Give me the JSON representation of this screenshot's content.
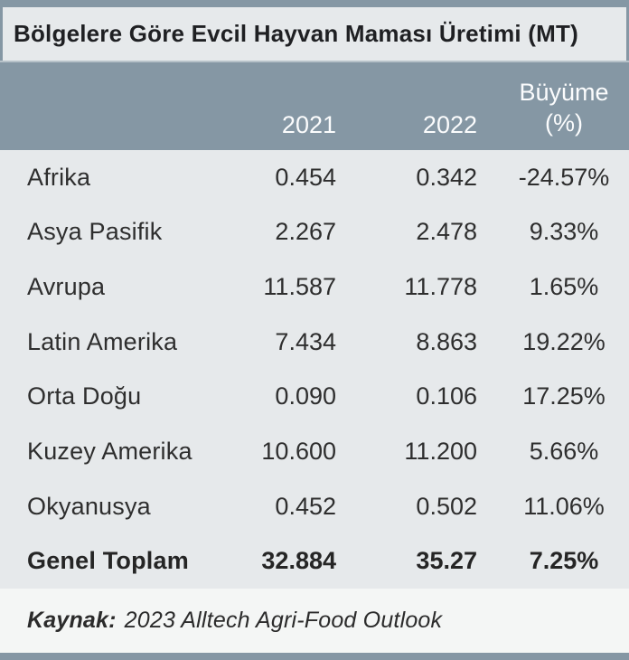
{
  "title": "Bölgelere Göre Evcil Hayvan Maması Üretimi (MT)",
  "columns": {
    "region": "",
    "year1": "2021",
    "year2": "2022",
    "growth_line1": "Büyüme",
    "growth_line2": "(%)"
  },
  "rows": [
    {
      "region": "Afrika",
      "y2021": "0.454",
      "y2022": "0.342",
      "growth": "-24.57%"
    },
    {
      "region": "Asya Pasifik",
      "y2021": "2.267",
      "y2022": "2.478",
      "growth": "9.33%"
    },
    {
      "region": "Avrupa",
      "y2021": "11.587",
      "y2022": "11.778",
      "growth": "1.65%"
    },
    {
      "region": "Latin Amerika",
      "y2021": "7.434",
      "y2022": "8.863",
      "growth": "19.22%"
    },
    {
      "region": "Orta Doğu",
      "y2021": "0.090",
      "y2022": "0.106",
      "growth": "17.25%"
    },
    {
      "region": "Kuzey Amerika",
      "y2021": "10.600",
      "y2022": "11.200",
      "growth": "5.66%"
    },
    {
      "region": "Okyanusya",
      "y2021": "0.452",
      "y2022": "0.502",
      "growth": "11.06%"
    },
    {
      "region": "Genel Toplam",
      "y2021": "32.884",
      "y2022": "35.27",
      "growth": "7.25%"
    }
  ],
  "footer": {
    "label": "Kaynak:",
    "text": "2023 Alltech Agri-Food Outlook"
  },
  "colors": {
    "accent": "#8597a4",
    "panel": "#e6e9eb",
    "footer_bg": "#f4f6f5",
    "text": "#2e2e2e",
    "header_text": "#fbfcfd"
  },
  "chart_data": {
    "type": "table",
    "title": "Bölgelere Göre Evcil Hayvan Maması Üretimi (MT)",
    "categories": [
      "Afrika",
      "Asya Pasifik",
      "Avrupa",
      "Latin Amerika",
      "Orta Doğu",
      "Kuzey Amerika",
      "Okyanusya",
      "Genel Toplam"
    ],
    "series": [
      {
        "name": "2021",
        "values": [
          0.454,
          2.267,
          11.587,
          7.434,
          0.09,
          10.6,
          0.452,
          32.884
        ]
      },
      {
        "name": "2022",
        "values": [
          0.342,
          2.478,
          11.778,
          8.863,
          0.106,
          11.2,
          0.502,
          35.27
        ]
      },
      {
        "name": "Büyüme (%)",
        "values": [
          -24.57,
          9.33,
          1.65,
          19.22,
          17.25,
          5.66,
          11.06,
          7.25
        ]
      }
    ],
    "source": "Kaynak: 2023 Alltech Agri-Food Outlook",
    "legend_position": "none",
    "grid": false
  }
}
